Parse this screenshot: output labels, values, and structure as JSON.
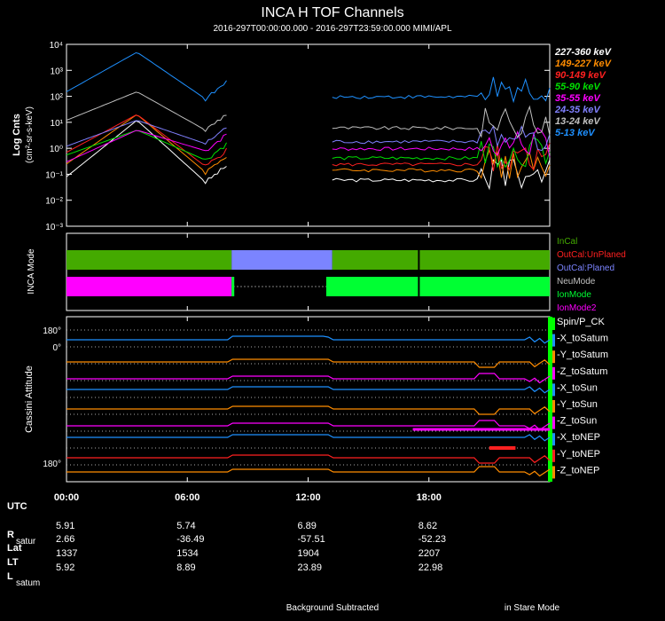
{
  "header": {
    "title": "INCA H TOF Channels",
    "subtitle": "2016-297T00:00:00.000 - 2016-297T23:59:00.000 MIMI/APL"
  },
  "chart_data": [
    {
      "type": "line",
      "name": "tof-channels",
      "ylabel": "Log Cnts",
      "yunits": "(cm²-sr-s-keV)",
      "yscale": "log",
      "ylim": [
        0.001,
        10000
      ],
      "ytick_labels": [
        "10⁴",
        "10³",
        "10²",
        "10¹",
        "10⁰",
        "10⁻¹",
        "10⁻²",
        "10⁻³"
      ],
      "xlim_hours": [
        0,
        24
      ],
      "gap_hours": [
        8.1,
        13.2
      ],
      "series": [
        {
          "name": "227-360 keV",
          "color": "#ffffff",
          "start": 0.08,
          "peak": 12,
          "end": 0.05
        },
        {
          "name": "149-227 keV",
          "color": "#ff8c00",
          "start": 0.25,
          "peak": 20,
          "end": 0.12
        },
        {
          "name": "90-149 keV",
          "color": "#ff2020",
          "start": 0.7,
          "peak": 20,
          "end": 0.2
        },
        {
          "name": "55-90 keV",
          "color": "#00e000",
          "start": 0.55,
          "peak": 5,
          "end": 0.35
        },
        {
          "name": "35-55 keV",
          "color": "#ff00ff",
          "start": 0.3,
          "peak": 5,
          "end": 0.8
        },
        {
          "name": "24-35 keV",
          "color": "#8080ff",
          "start": 1.2,
          "peak": 12,
          "end": 1.5
        },
        {
          "name": "13-24 keV",
          "color": "#c0c0c0",
          "start": 12,
          "peak": 150,
          "end": 5
        },
        {
          "name": "5-13 keV",
          "color": "#1e90ff",
          "start": 150,
          "peak": 5000,
          "end": 80
        }
      ]
    },
    {
      "type": "timeline",
      "name": "inca-mode",
      "ylabel": "INCA Mode",
      "legend": [
        {
          "name": "InCal",
          "color": "#44aa00"
        },
        {
          "name": "OutCal:UnPlaned",
          "color": "#ff2020"
        },
        {
          "name": "OutCal:Planed",
          "color": "#7b84ff"
        },
        {
          "name": "NeuMode",
          "color": "#c0c0c0"
        },
        {
          "name": "IonMode",
          "color": "#00ff33"
        },
        {
          "name": "IonMode2",
          "color": "#ff00ff"
        }
      ],
      "cal_segments": [
        {
          "state": "InCal",
          "start": 0,
          "end": 8.2
        },
        {
          "state": "OutCal:Planed",
          "start": 8.2,
          "end": 13.2
        },
        {
          "state": "InCal",
          "start": 13.2,
          "end": 24
        }
      ],
      "mode_segments": [
        {
          "state": "IonMode2",
          "start": 0,
          "end": 8.2
        },
        {
          "state": "IonMode",
          "start": 8.2,
          "end": 8.3
        },
        {
          "state": "IonMode",
          "start": 12.9,
          "end": 24
        }
      ]
    },
    {
      "type": "line",
      "name": "cassini-attitude",
      "ylabel": "Cassini Attitude",
      "ytick_labels": [
        "180°",
        "0°",
        "180°"
      ],
      "series": [
        {
          "name": "Spin/P_CK",
          "color": "#00ff00",
          "level": 0
        },
        {
          "name": "-X_toSatum",
          "color": "#1e90ff",
          "level": 1
        },
        {
          "name": "-Y_toSatum",
          "color": "#ff8c00",
          "level": 2
        },
        {
          "name": "-Z_toSatum",
          "color": "#ff00ff",
          "level": 3
        },
        {
          "name": "-X_toSun",
          "color": "#1e90ff",
          "level": 4
        },
        {
          "name": "-Y_toSun",
          "color": "#ff8c00",
          "level": 5
        },
        {
          "name": "-Z_toSun",
          "color": "#ff00ff",
          "level": 6
        },
        {
          "name": "-X_toNEP",
          "color": "#1e90ff",
          "level": 7
        },
        {
          "name": "-Y_toNEP",
          "color": "#ff2020",
          "level": 8
        },
        {
          "name": "-Z_toNEP",
          "color": "#ff8c00",
          "level": 9
        }
      ]
    }
  ],
  "x_axis": {
    "label": "UTC",
    "ticks": [
      "00:00",
      "06:00",
      "12:00",
      "18:00"
    ]
  },
  "ephemeris": {
    "rows": [
      {
        "label": "R",
        "sub": "satur",
        "values": [
          "5.91",
          "5.74",
          "6.89",
          "8.62"
        ]
      },
      {
        "label": "Lat",
        "sub": "",
        "values": [
          "2.66",
          "-36.49",
          "-57.51",
          "-52.23"
        ]
      },
      {
        "label": "LT",
        "sub": "",
        "values": [
          "1337",
          "1534",
          "1904",
          "2207"
        ]
      },
      {
        "label": "L",
        "sub": "satum",
        "values": [
          "5.92",
          "8.89",
          "23.89",
          "22.98"
        ]
      }
    ]
  },
  "footer": {
    "left": "Background Subtracted",
    "right": "in Stare Mode"
  }
}
